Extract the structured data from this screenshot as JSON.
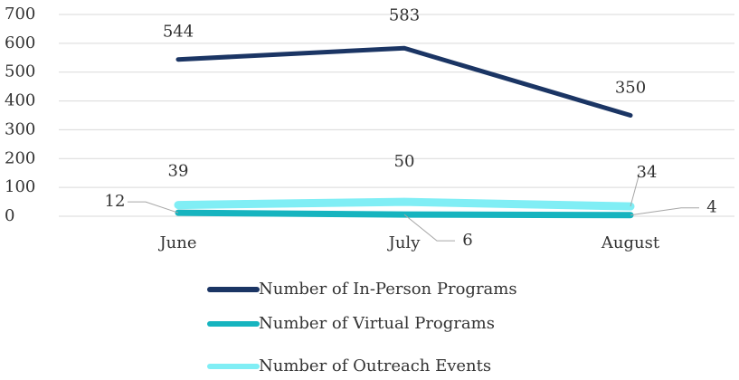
{
  "chart_data": {
    "type": "line",
    "categories": [
      "June",
      "July",
      "August"
    ],
    "series": [
      {
        "name": "Number of In-Person Programs",
        "color": "#1b3564",
        "values": [
          544,
          583,
          350
        ]
      },
      {
        "name": "Number of Virtual Programs",
        "color": "#16b4bf",
        "values": [
          12,
          6,
          4
        ]
      },
      {
        "name": "Number of Outreach Events",
        "color": "#80eef5",
        "values": [
          39,
          50,
          34
        ]
      }
    ],
    "ylim": [
      0,
      700
    ],
    "yticks": [
      0,
      100,
      200,
      300,
      400,
      500,
      600,
      700
    ],
    "grid": true,
    "legend": "bottom"
  }
}
